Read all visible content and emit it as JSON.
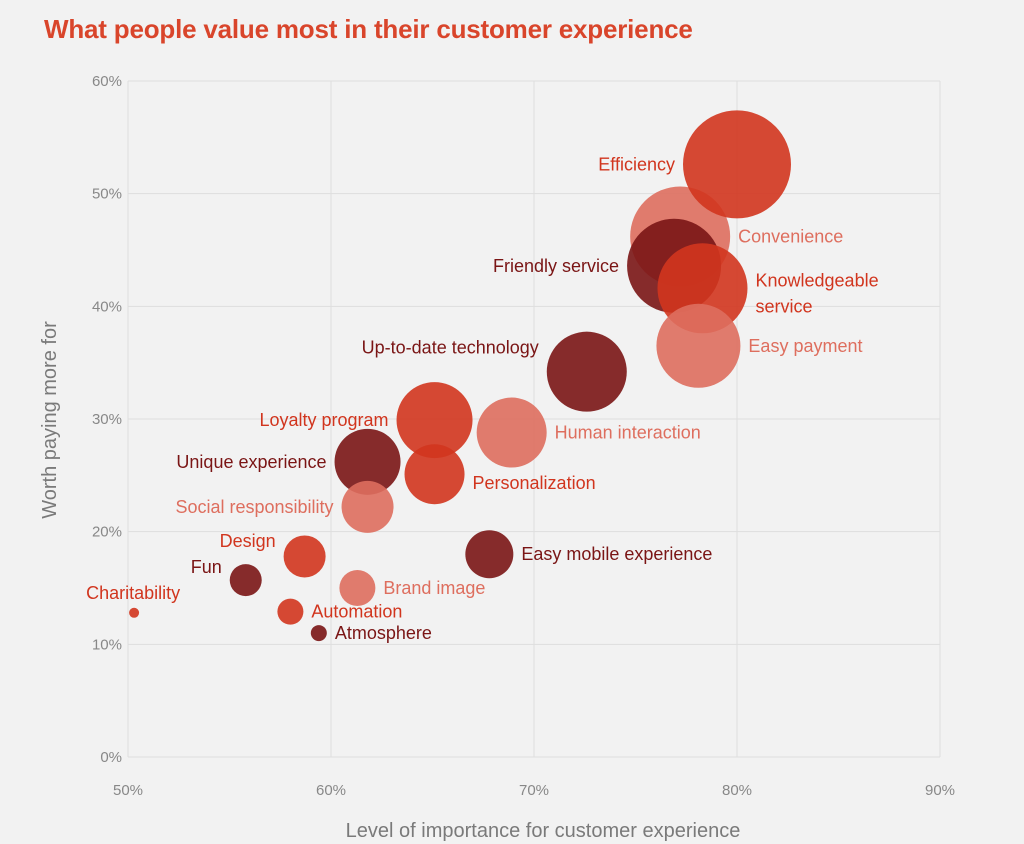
{
  "chart_data": {
    "type": "scatter",
    "title": "What people value most in their customer experience",
    "xlabel": "Level of importance for customer experience",
    "ylabel": "Worth paying more for",
    "xlim": [
      50,
      90
    ],
    "ylim": [
      0,
      60
    ],
    "x_ticks": [
      {
        "value": 50,
        "label": "50%"
      },
      {
        "value": 60,
        "label": "60%"
      },
      {
        "value": 70,
        "label": "70%"
      },
      {
        "value": 80,
        "label": "80%"
      },
      {
        "value": 90,
        "label": "90%"
      }
    ],
    "y_ticks": [
      {
        "value": 0,
        "label": "0%"
      },
      {
        "value": 10,
        "label": "10%"
      },
      {
        "value": 20,
        "label": "20%"
      },
      {
        "value": 30,
        "label": "30%"
      },
      {
        "value": 40,
        "label": "40%"
      },
      {
        "value": 50,
        "label": "50%"
      },
      {
        "value": 60,
        "label": "60%"
      }
    ],
    "grid": true,
    "colors": {
      "title": "#d9452b",
      "red": "#d1351e",
      "dark": "#7a1515",
      "light": "#de6e5e",
      "grid": "#dedede"
    },
    "points": [
      {
        "label": "Convenience",
        "x": 77.2,
        "y": 46.2,
        "size": 50,
        "color": "light",
        "label_color": "light",
        "label_pos": "right"
      },
      {
        "label": "Friendly service",
        "x": 76.9,
        "y": 43.6,
        "size": 47,
        "color": "dark",
        "label_color": "dark",
        "label_pos": "left"
      },
      {
        "label": "Efficiency",
        "x": 80.0,
        "y": 52.6,
        "size": 54,
        "color": "red",
        "label_color": "red",
        "label_pos": "left"
      },
      {
        "label": "Knowledgeable service",
        "x": 78.3,
        "y": 41.6,
        "size": 45,
        "color": "red",
        "label_color": "red",
        "label_pos": "right-multi",
        "label_lines": [
          "Knowledgeable",
          "service"
        ]
      },
      {
        "label": "Easy payment",
        "x": 78.1,
        "y": 36.5,
        "size": 42,
        "color": "light",
        "label_color": "light",
        "label_pos": "right"
      },
      {
        "label": "Up-to-date technology",
        "x": 72.6,
        "y": 34.2,
        "size": 40,
        "color": "dark",
        "label_color": "dark",
        "label_pos": "left-up"
      },
      {
        "label": "Human interaction",
        "x": 68.9,
        "y": 28.8,
        "size": 35,
        "color": "light",
        "label_color": "light",
        "label_pos": "right"
      },
      {
        "label": "Loyalty program",
        "x": 65.1,
        "y": 29.9,
        "size": 38,
        "color": "red",
        "label_color": "red",
        "label_pos": "left"
      },
      {
        "label": "Personalization",
        "x": 65.1,
        "y": 25.1,
        "size": 30,
        "color": "red",
        "label_color": "red",
        "label_pos": "right-down"
      },
      {
        "label": "Unique experience",
        "x": 61.8,
        "y": 26.2,
        "size": 33,
        "color": "dark",
        "label_color": "dark",
        "label_pos": "left"
      },
      {
        "label": "Social responsibility",
        "x": 61.8,
        "y": 22.2,
        "size": 26,
        "color": "light",
        "label_color": "light",
        "label_pos": "left"
      },
      {
        "label": "Easy mobile experience",
        "x": 67.8,
        "y": 18.0,
        "size": 24,
        "color": "dark",
        "label_color": "dark",
        "label_pos": "right"
      },
      {
        "label": "Design",
        "x": 58.7,
        "y": 17.8,
        "size": 21,
        "color": "red",
        "label_color": "red",
        "label_pos": "left-up"
      },
      {
        "label": "Brand image",
        "x": 61.3,
        "y": 15.0,
        "size": 18,
        "color": "light",
        "label_color": "light",
        "label_pos": "right"
      },
      {
        "label": "Fun",
        "x": 55.8,
        "y": 15.7,
        "size": 16,
        "color": "dark",
        "label_color": "dark",
        "label_pos": "left-up"
      },
      {
        "label": "Automation",
        "x": 58.0,
        "y": 12.9,
        "size": 13,
        "color": "red",
        "label_color": "red",
        "label_pos": "right"
      },
      {
        "label": "Atmosphere",
        "x": 59.4,
        "y": 11.0,
        "size": 8,
        "color": "dark",
        "label_color": "dark",
        "label_pos": "right"
      },
      {
        "label": "Charitability",
        "x": 50.3,
        "y": 12.8,
        "size": 5,
        "color": "red",
        "label_color": "red",
        "label_pos": "up-right"
      }
    ]
  }
}
